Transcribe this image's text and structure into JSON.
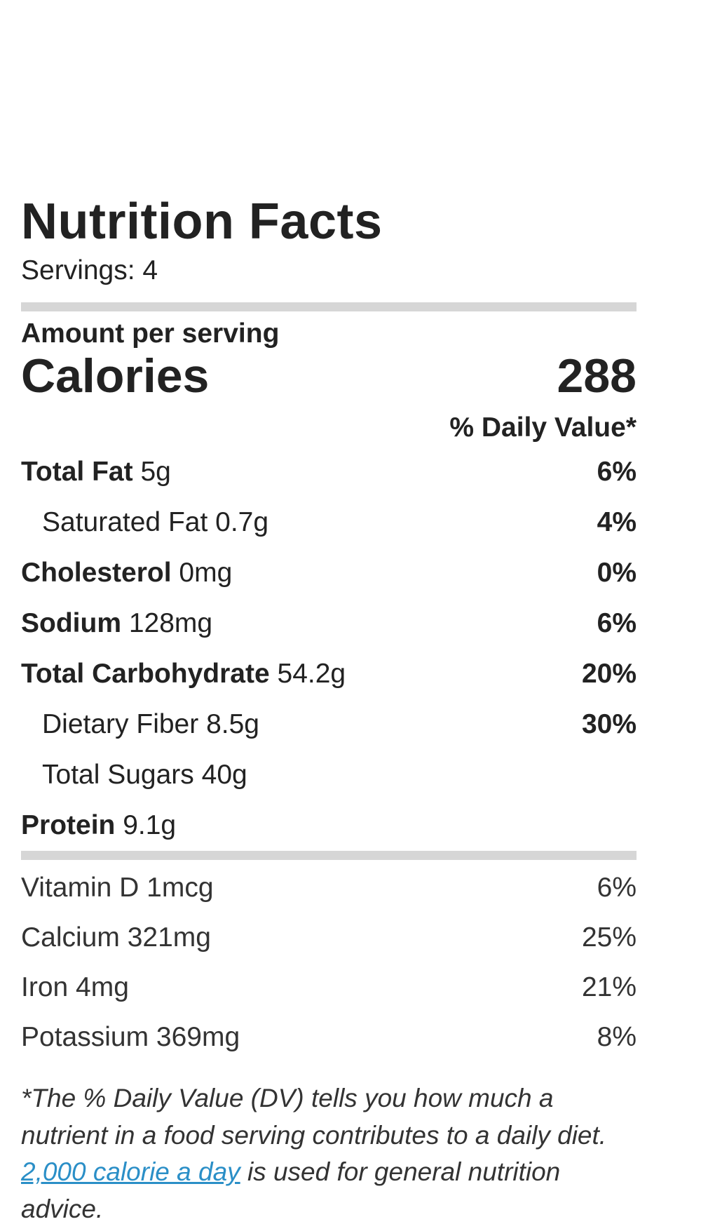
{
  "label": {
    "title": "Nutrition Facts",
    "servings": "Servings: 4",
    "amount_per_serving": "Amount per serving",
    "calories_label": "Calories",
    "calories_value": "288",
    "daily_value_header": "% Daily Value*"
  },
  "nutrients": [
    {
      "name": "Total Fat",
      "amount": "5g",
      "dv": "6%"
    },
    {
      "name": "Saturated Fat",
      "amount": "0.7g",
      "dv": "4%"
    },
    {
      "name": "Cholesterol",
      "amount": "0mg",
      "dv": "0%"
    },
    {
      "name": "Sodium",
      "amount": "128mg",
      "dv": "6%"
    },
    {
      "name": "Total Carbohydrate",
      "amount": "54.2g",
      "dv": "20%"
    },
    {
      "name": "Dietary Fiber",
      "amount": "8.5g",
      "dv": "30%"
    },
    {
      "name": "Total Sugars",
      "amount": "40g",
      "dv": ""
    },
    {
      "name": "Protein",
      "amount": "9.1g",
      "dv": ""
    }
  ],
  "vitamins": [
    {
      "label": "Vitamin D 1mcg",
      "dv": "6%"
    },
    {
      "label": "Calcium 321mg",
      "dv": "25%"
    },
    {
      "label": "Iron 4mg",
      "dv": "21%"
    },
    {
      "label": "Potassium 369mg",
      "dv": "8%"
    }
  ],
  "footnote": {
    "text_before": "*The % Daily Value (DV) tells you how much a nutrient in a food serving contributes to a daily diet. ",
    "link_text": "2,000 calorie a day",
    "text_after": " is used for general nutrition advice."
  },
  "colors": {
    "text": "#222222",
    "rule": "#d6d6d6",
    "link": "#2b8fc7"
  }
}
